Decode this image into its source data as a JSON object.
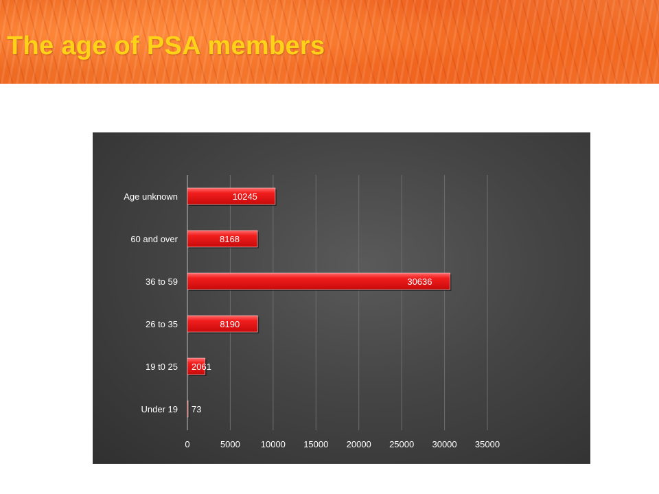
{
  "slide": {
    "title": "The age of PSA members"
  },
  "colors": {
    "banner": "#f0691f",
    "title": "#ffd21a",
    "chart_bg": "#454545",
    "bar": "#e81818",
    "bar_top": "#ff5a5a"
  },
  "chart_data": {
    "type": "bar",
    "orientation": "horizontal",
    "categories": [
      "Under 19",
      "19 t0 25",
      "26 to 35",
      "36 to 59",
      "60 and over",
      "Age unknown"
    ],
    "values": [
      73,
      2061,
      8190,
      30636,
      8168,
      10245
    ],
    "data_labels": [
      "73",
      "2061",
      "8190",
      "30636",
      "8168",
      "10245"
    ],
    "xlim": [
      0,
      35000
    ],
    "xticks": [
      0,
      5000,
      10000,
      15000,
      20000,
      25000,
      30000,
      35000
    ],
    "xtick_labels": [
      "0",
      "5000",
      "10000",
      "15000",
      "20000",
      "25000",
      "30000",
      "35000"
    ],
    "grid": "vertical",
    "legend": "none"
  }
}
